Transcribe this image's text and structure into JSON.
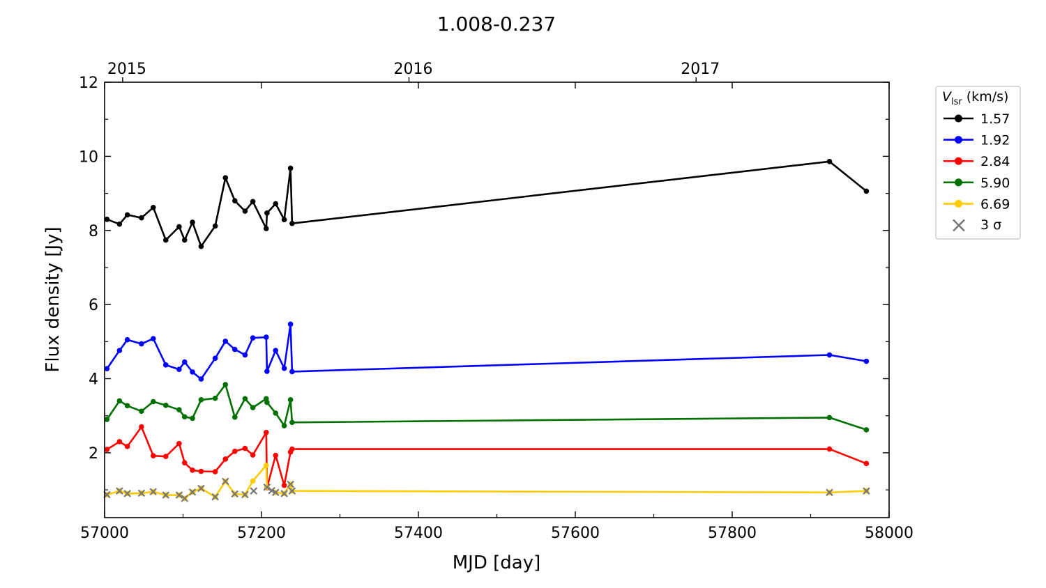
{
  "chart_data": {
    "type": "line",
    "title": "1.008-0.237",
    "xlabel": "MJD [day]",
    "ylabel": "Flux density [Jy]",
    "xlim": [
      57000,
      58000
    ],
    "ylim": [
      0.25,
      12
    ],
    "xticks": [
      57000,
      57200,
      57400,
      57600,
      57800,
      58000
    ],
    "yticks": [
      2,
      4,
      6,
      8,
      10,
      12
    ],
    "top_axis": {
      "ticks": [
        {
          "label": "2015",
          "mjd": 57023
        },
        {
          "label": "2016",
          "mjd": 57388
        },
        {
          "label": "2017",
          "mjd": 57754
        }
      ]
    },
    "grid": false,
    "legend": {
      "placement": "outside-right-top",
      "title_symbol": "V",
      "title_sub": "lsr",
      "title_unit": " (km/s)",
      "sigma_label": "3 σ",
      "sigma_color": "#777777"
    },
    "series": [
      {
        "name": "1.57",
        "color": "#000000",
        "x": [
          57003,
          57019,
          57029,
          57047,
          57062,
          57078,
          57095,
          57102,
          57112,
          57123,
          57141,
          57154,
          57166,
          57179,
          57189,
          57206,
          57207,
          57218,
          57229,
          57237,
          57239,
          57924,
          57971
        ],
        "y": [
          8.3,
          8.17,
          8.42,
          8.34,
          8.62,
          7.74,
          8.1,
          7.74,
          8.22,
          7.57,
          8.12,
          9.42,
          8.8,
          8.52,
          8.78,
          8.05,
          8.47,
          8.72,
          8.29,
          9.68,
          8.19,
          9.86,
          9.06
        ],
        "sigma": []
      },
      {
        "name": "1.92",
        "color": "#0000ff",
        "x": [
          57003,
          57019,
          57029,
          57047,
          57062,
          57078,
          57095,
          57102,
          57112,
          57123,
          57141,
          57154,
          57166,
          57179,
          57189,
          57206,
          57207,
          57218,
          57229,
          57237,
          57239,
          57924,
          57971
        ],
        "y": [
          4.27,
          4.76,
          5.05,
          4.94,
          5.08,
          4.37,
          4.25,
          4.45,
          4.18,
          3.99,
          4.55,
          5.01,
          4.79,
          4.64,
          5.1,
          5.12,
          4.2,
          4.76,
          4.28,
          5.47,
          4.19,
          4.64,
          4.47
        ],
        "sigma": []
      },
      {
        "name": "2.84",
        "color": "#ff0000",
        "x": [
          57003,
          57019,
          57029,
          57047,
          57062,
          57078,
          57095,
          57102,
          57112,
          57123,
          57141,
          57154,
          57166,
          57179,
          57189,
          57206,
          57207,
          57218,
          57229,
          57237,
          57239,
          57924,
          57971
        ],
        "y": [
          2.09,
          2.3,
          2.17,
          2.7,
          1.92,
          1.9,
          2.25,
          1.73,
          1.53,
          1.5,
          1.49,
          1.83,
          2.04,
          2.12,
          1.94,
          2.55,
          1.06,
          1.93,
          1.12,
          2.02,
          2.1,
          2.1,
          1.71
        ],
        "sigma": []
      },
      {
        "name": "5.90",
        "color": "#007000",
        "x": [
          57003,
          57019,
          57029,
          57047,
          57062,
          57078,
          57095,
          57102,
          57112,
          57123,
          57141,
          57154,
          57166,
          57179,
          57189,
          57206,
          57207,
          57218,
          57229,
          57237,
          57239,
          57924,
          57971
        ],
        "y": [
          2.9,
          3.4,
          3.27,
          3.12,
          3.38,
          3.28,
          3.16,
          2.97,
          2.93,
          3.43,
          3.47,
          3.84,
          2.96,
          3.46,
          3.22,
          3.46,
          3.36,
          3.07,
          2.73,
          3.43,
          2.82,
          2.95,
          2.62
        ],
        "sigma": []
      },
      {
        "name": "6.69",
        "color": "#ffcc00",
        "x": [
          57003,
          57019,
          57029,
          57047,
          57062,
          57078,
          57095,
          57102,
          57112,
          57123,
          57141,
          57154,
          57166,
          57179,
          57189,
          57206,
          57207,
          57218,
          57229,
          57237,
          57239,
          57924,
          57971
        ],
        "y": [
          0.87,
          0.97,
          0.9,
          0.91,
          0.95,
          0.86,
          0.86,
          0.77,
          0.94,
          1.04,
          0.81,
          1.23,
          0.89,
          0.87,
          1.24,
          1.66,
          1.07,
          0.93,
          0.9,
          1.15,
          0.97,
          0.93,
          0.97
        ],
        "sigma": [
          0,
          1,
          2,
          3,
          4,
          5,
          6,
          7,
          8,
          9,
          10,
          11,
          12,
          13,
          16,
          17,
          18,
          19,
          20,
          21,
          22
        ],
        "sigma_extra": [
          {
            "x": 57190,
            "y": 0.97
          },
          {
            "x": 57213,
            "y": 0.98
          }
        ]
      }
    ]
  }
}
